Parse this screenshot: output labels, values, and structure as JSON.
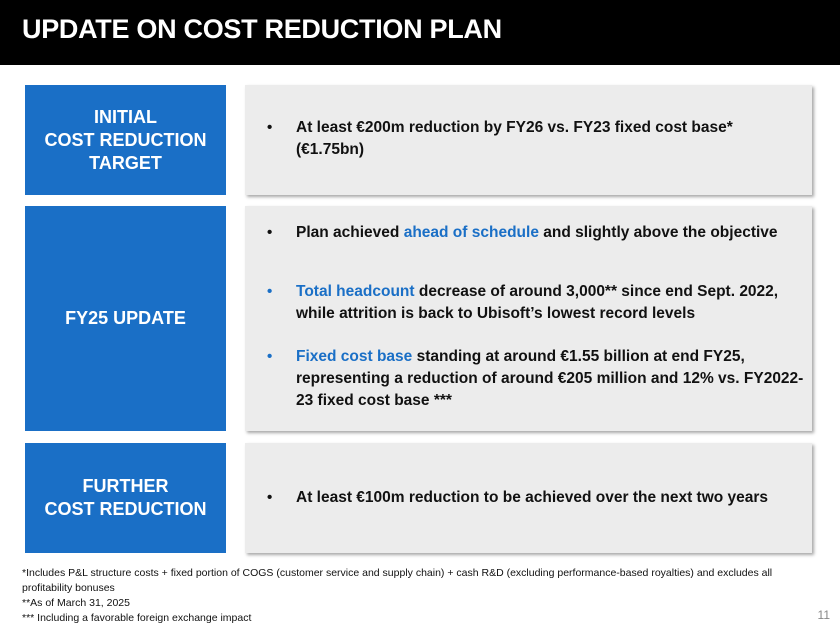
{
  "header": {
    "title": "UPDATE ON COST REDUCTION PLAN"
  },
  "rows": [
    {
      "label_lines": [
        "INITIAL",
        "COST REDUCTION",
        "TARGET"
      ],
      "bullets": [
        {
          "segments": [
            {
              "text": "At least €200m reduction by FY26 vs. FY23 fixed cost base* (€1.75bn)",
              "highlight": false
            }
          ]
        }
      ]
    },
    {
      "label_lines": [
        "FY25 UPDATE"
      ],
      "bullets": [
        {
          "segments": [
            {
              "text": "Plan achieved ",
              "highlight": false
            },
            {
              "text": "ahead of schedule",
              "highlight": true
            },
            {
              "text": " and slightly above the objective",
              "highlight": false
            }
          ]
        },
        {
          "segments": [
            {
              "text": "Total headcount",
              "highlight": true
            },
            {
              "text": " decrease of around 3,000** since end Sept. 2022, while attrition is back to Ubisoft’s lowest record levels",
              "highlight": false
            }
          ]
        },
        {
          "segments": [
            {
              "text": "Fixed cost base",
              "highlight": true
            },
            {
              "text": " standing at around €1.55 billion at end FY25, representing a reduction of around €205 million and 12% vs. FY2022-23 fixed cost base ***",
              "highlight": false
            }
          ]
        }
      ]
    },
    {
      "label_lines": [
        "FURTHER",
        "COST REDUCTION"
      ],
      "bullets": [
        {
          "segments": [
            {
              "text": "At least €100m reduction to be achieved over the next two years",
              "highlight": false
            }
          ]
        }
      ]
    }
  ],
  "bullet_symbol": "•",
  "footnotes": [
    "*Includes P&L structure costs + fixed portion of COGS (customer service and supply chain) + cash R&D (excluding performance-based royalties) and excludes all profitability bonuses",
    "**As of March 31, 2025",
    "*** Including a favorable foreign exchange impact"
  ],
  "page_number": "11",
  "colors": {
    "accent_blue": "#1a6fc6",
    "header_bg": "#000000",
    "content_bg": "#ececec"
  }
}
